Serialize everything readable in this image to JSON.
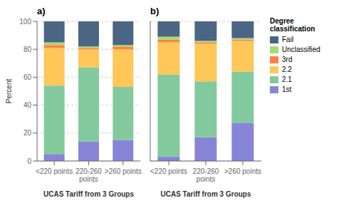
{
  "chart_data": [
    {
      "type": "bar",
      "stacked": true,
      "title": "a)",
      "categories": [
        "<220 points",
        "220-260\npoints",
        ">260 points"
      ],
      "xlabel": "UCAS Tariff from 3 Groups",
      "ylabel": "Percent",
      "ylim": [
        0,
        100
      ],
      "yticks": [
        0,
        20,
        40,
        60,
        80,
        100
      ],
      "grid": true,
      "series": [
        {
          "name": "1st",
          "values": [
            5,
            14,
            15
          ]
        },
        {
          "name": "2.1",
          "values": [
            49,
            53,
            38
          ]
        },
        {
          "name": "2.2",
          "values": [
            27,
            13,
            27
          ]
        },
        {
          "name": "3rd",
          "values": [
            2,
            1,
            2
          ]
        },
        {
          "name": "Unclassified",
          "values": [
            2,
            1,
            1
          ]
        },
        {
          "name": "Fail",
          "values": [
            15,
            18,
            17
          ]
        }
      ]
    },
    {
      "type": "bar",
      "stacked": true,
      "title": "b)",
      "categories": [
        "<220 points",
        "220-260\npoints",
        ">260 points"
      ],
      "xlabel": "UCAS Tariff from 3 Groups",
      "ylim": [
        0,
        100
      ],
      "yticks": [
        0,
        20,
        40,
        60,
        80,
        100
      ],
      "grid": true,
      "tick_labels": "x",
      "legend": "right",
      "legend_title": "Degree\nclassification",
      "series": [
        {
          "name": "1st",
          "values": [
            3,
            17,
            27
          ]
        },
        {
          "name": "2.1",
          "values": [
            59,
            40,
            37
          ]
        },
        {
          "name": "2.2",
          "values": [
            23,
            27,
            22
          ]
        },
        {
          "name": "3rd",
          "values": [
            2,
            1,
            1
          ]
        },
        {
          "name": "Unclassified",
          "values": [
            2,
            1,
            1
          ]
        },
        {
          "name": "Fail",
          "values": [
            11,
            14,
            12
          ]
        }
      ]
    }
  ]
}
